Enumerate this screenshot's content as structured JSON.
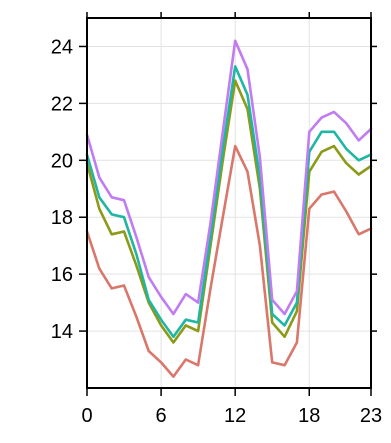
{
  "chart_data": {
    "type": "line",
    "title": "",
    "xlabel": "",
    "ylabel": "",
    "x": [
      0,
      1,
      2,
      3,
      4,
      5,
      6,
      7,
      8,
      9,
      10,
      11,
      12,
      13,
      14,
      15,
      16,
      17,
      18,
      19,
      20,
      21,
      22,
      23
    ],
    "xlim": [
      0,
      23
    ],
    "ylim": [
      12.0,
      25.0
    ],
    "x_ticks": [
      0,
      6,
      12,
      18,
      23
    ],
    "x_tick_labels": [
      "0",
      "6",
      "12",
      "18",
      "23"
    ],
    "y_ticks": [
      14,
      16,
      18,
      20,
      22,
      24
    ],
    "y_tick_labels": [
      "14",
      "16",
      "18",
      "20",
      "22",
      "24"
    ],
    "grid": true,
    "series": [
      {
        "color": "#d9776a",
        "values": [
          17.5,
          16.2,
          15.5,
          15.6,
          14.5,
          13.3,
          12.9,
          12.4,
          13.0,
          12.8,
          15.5,
          18.0,
          20.5,
          19.6,
          17.0,
          12.9,
          12.8,
          13.6,
          18.3,
          18.8,
          18.9,
          18.2,
          17.4,
          17.6
        ]
      },
      {
        "color": "#8c9a17",
        "values": [
          19.9,
          18.3,
          17.4,
          17.5,
          16.3,
          15.0,
          14.2,
          13.6,
          14.2,
          14.0,
          17.0,
          20.0,
          22.8,
          21.8,
          19.0,
          14.3,
          13.8,
          14.7,
          19.6,
          20.3,
          20.5,
          19.9,
          19.5,
          19.8
        ]
      },
      {
        "color": "#1fb6a3",
        "values": [
          20.2,
          18.7,
          18.1,
          18.0,
          16.7,
          15.1,
          14.4,
          13.8,
          14.4,
          14.3,
          17.3,
          20.4,
          23.3,
          22.3,
          19.4,
          14.6,
          14.2,
          15.0,
          20.3,
          21.0,
          21.0,
          20.4,
          20.0,
          20.2
        ]
      },
      {
        "color": "#c07cf0",
        "values": [
          20.9,
          19.4,
          18.7,
          18.6,
          17.3,
          15.9,
          15.2,
          14.6,
          15.3,
          15.0,
          17.8,
          21.0,
          24.2,
          23.2,
          20.1,
          15.1,
          14.6,
          15.4,
          21.0,
          21.5,
          21.7,
          21.3,
          20.7,
          21.1
        ]
      }
    ]
  }
}
